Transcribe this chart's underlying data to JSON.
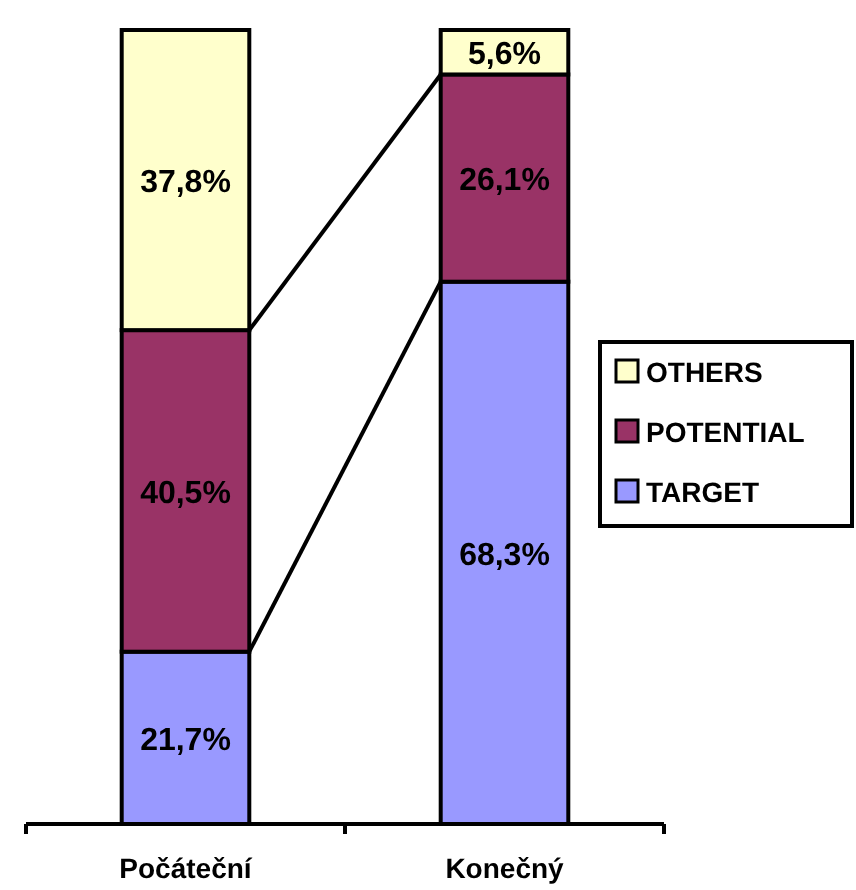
{
  "chart_data": {
    "type": "bar",
    "stacked": true,
    "categories": [
      "Počáteční",
      "Konečný"
    ],
    "series": [
      {
        "name": "TARGET",
        "color": "#9999ff",
        "values": [
          21.7,
          68.3
        ],
        "value_labels": [
          "21,7%",
          "68,3%"
        ]
      },
      {
        "name": "POTENTIAL",
        "color": "#993366",
        "values": [
          40.5,
          26.1
        ],
        "value_labels": [
          "40,5%",
          "26,1%"
        ]
      },
      {
        "name": "OTHERS",
        "color": "#ffffcc",
        "values": [
          37.8,
          5.6
        ],
        "value_labels": [
          "37,8%",
          "5,6%"
        ]
      }
    ],
    "legend": "right"
  }
}
